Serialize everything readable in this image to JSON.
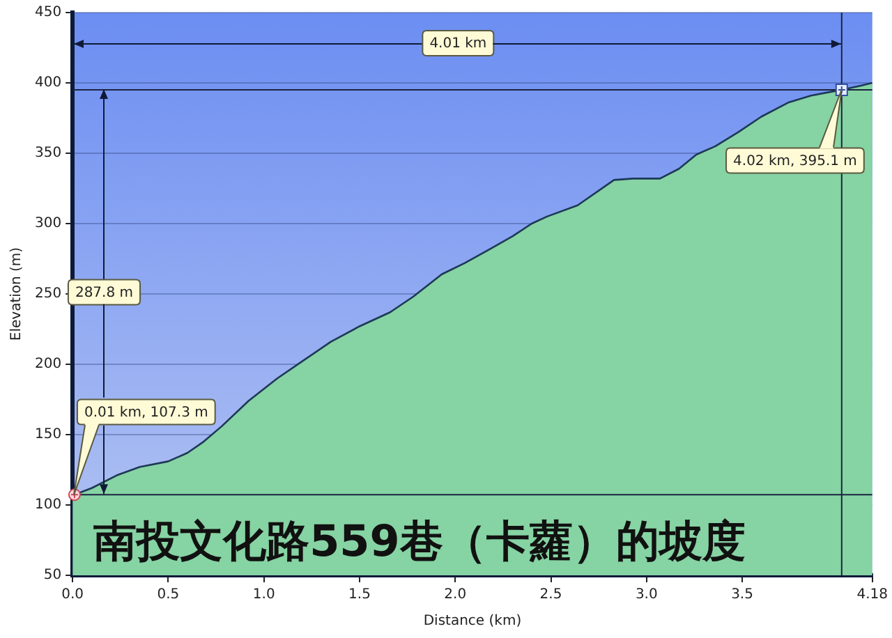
{
  "chart_data": {
    "type": "area",
    "title": "南投文化路559巷（卡蘿）的坡度",
    "xlabel": "Distance (km)",
    "ylabel": "Elevation (m)",
    "x": [
      0,
      0.01,
      0.1,
      0.23,
      0.35,
      0.5,
      0.6,
      0.685,
      0.78,
      0.92,
      1.07,
      1.21,
      1.35,
      1.5,
      1.66,
      1.78,
      1.93,
      2.05,
      2.17,
      2.3,
      2.4,
      2.48,
      2.64,
      2.83,
      2.93,
      3.07,
      3.17,
      3.26,
      3.36,
      3.48,
      3.6,
      3.74,
      3.86,
      4.02,
      4.12,
      4.18
    ],
    "values": [
      107,
      107.3,
      112,
      121,
      127,
      131,
      137,
      145,
      156,
      174,
      190,
      203,
      216,
      227,
      237,
      248,
      264,
      272,
      281,
      291,
      300,
      305,
      313,
      331,
      332,
      332,
      339,
      349,
      355,
      365,
      376,
      386,
      391,
      395.1,
      398,
      400
    ],
    "color": "#86d3a3",
    "xlim": [
      0,
      4.18
    ],
    "xticks": [
      {
        "value": 0,
        "label": "0.0"
      },
      0.5,
      {
        "value": 1,
        "label": "1.0"
      },
      1.5,
      {
        "value": 2,
        "label": "2.0"
      },
      2.5,
      {
        "value": 3,
        "label": "3.0"
      },
      3.5,
      4.18
    ],
    "ylim": [
      50,
      450
    ],
    "yticks": [
      50,
      100,
      150,
      200,
      250,
      300,
      350,
      400,
      450
    ],
    "grid": "y",
    "ref_lines": [
      {
        "axis": "y",
        "value": 107.3,
        "color": "#1a2440"
      },
      {
        "axis": "y",
        "value": 395.1,
        "color": "#1a2440"
      },
      {
        "axis": "x",
        "value": 4.02,
        "color": "#1a2440"
      }
    ],
    "annotations": [
      {
        "text": "0.01 km, 107.3 m",
        "x": 0.01,
        "y": 107.3
      },
      {
        "text": "4.02 km, 395.1 m",
        "x": 4.02,
        "y": 395.1
      },
      "4.01 km",
      {
        "text": "287.8 m",
        "x": 0.165,
        "y": 395.1
      }
    ]
  }
}
